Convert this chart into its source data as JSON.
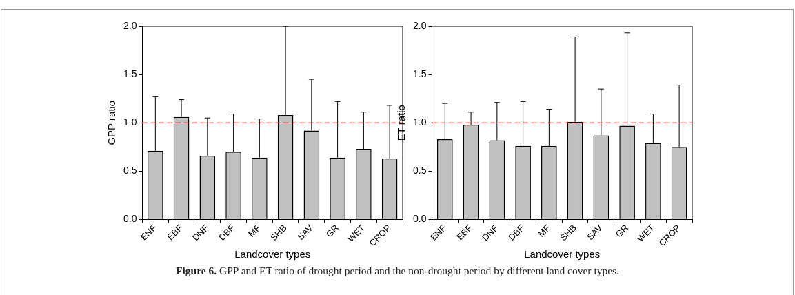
{
  "chart_data": [
    {
      "type": "bar",
      "xlabel": "Landcover types",
      "ylabel": "GPP ratio",
      "categories": [
        "ENF",
        "EBF",
        "DNF",
        "DBF",
        "MF",
        "SHB",
        "SAV",
        "GR",
        "WET",
        "CROP"
      ],
      "values": [
        0.71,
        1.06,
        0.66,
        0.7,
        0.64,
        1.08,
        0.92,
        0.64,
        0.73,
        0.63
      ],
      "errors": [
        [
          0.71,
          1.27
        ],
        [
          1.06,
          1.24
        ],
        [
          0.66,
          1.05
        ],
        [
          0.7,
          1.09
        ],
        [
          0.64,
          1.04
        ],
        [
          1.08,
          2.0
        ],
        [
          0.92,
          1.45
        ],
        [
          0.64,
          1.22
        ],
        [
          0.73,
          1.11
        ],
        [
          0.63,
          1.18
        ]
      ],
      "color": "#c0c0c0",
      "ylim": [
        0,
        2
      ],
      "yticks": [
        {
          "value": 0,
          "label": "0.0"
        },
        {
          "value": 0.5,
          "label": "0.5"
        },
        {
          "value": 1,
          "label": "1.0"
        },
        {
          "value": 1.5,
          "label": "1.5"
        },
        {
          "value": 2,
          "label": "2.0"
        }
      ],
      "ref_lines": [
        {
          "axis": "y",
          "value": 1,
          "color": "#ff0000",
          "line_style": "dashed"
        }
      ],
      "annotations": [
        "Figure 6. GPP and ET ratio of drought period and the non-drought period by different land cover types."
      ]
    },
    {
      "type": "bar",
      "xlabel": "Landcover types",
      "ylabel": "ET ratio",
      "categories": [
        "ENF",
        "EBF",
        "DNF",
        "DBF",
        "MF",
        "SHB",
        "SAV",
        "GR",
        "WET",
        "CROP"
      ],
      "values": [
        0.83,
        0.98,
        0.82,
        0.76,
        0.76,
        1.01,
        0.87,
        0.97,
        0.79,
        0.75
      ],
      "errors": [
        [
          0.83,
          1.2
        ],
        [
          0.98,
          1.11
        ],
        [
          0.82,
          1.21
        ],
        [
          0.76,
          1.22
        ],
        [
          0.76,
          1.14
        ],
        [
          1.01,
          1.89
        ],
        [
          0.87,
          1.35
        ],
        [
          0.97,
          1.93
        ],
        [
          0.79,
          1.09
        ],
        [
          0.75,
          1.39
        ]
      ],
      "color": "#c0c0c0",
      "ylim": [
        0,
        2
      ],
      "yticks": [
        {
          "value": 0,
          "label": "0.0"
        },
        {
          "value": 0.5,
          "label": "0.5"
        },
        {
          "value": 1,
          "label": "1.0"
        },
        {
          "value": 1.5,
          "label": "1.5"
        },
        {
          "value": 2,
          "label": "2.0"
        }
      ],
      "ref_lines": [
        {
          "axis": "y",
          "value": 1,
          "color": "#ff0000",
          "line_style": "dashed"
        }
      ]
    }
  ]
}
